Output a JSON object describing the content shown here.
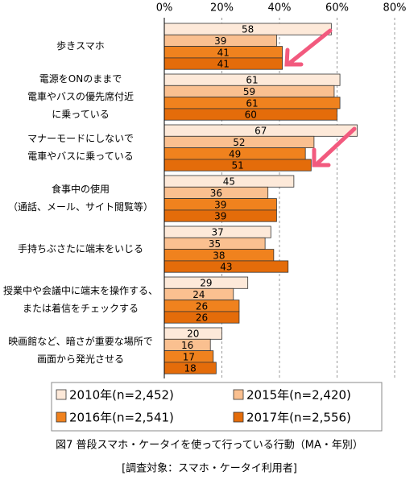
{
  "chart_data": {
    "type": "hbar",
    "title": "図7 普段スマホ・ケータイを使って行っている行動（MA・年別）",
    "subtitle": "[調査対象：スマホ・ケータイ利用者]",
    "categories": [
      [
        "歩きスマホ"
      ],
      [
        "電源をONのままで",
        "電車やバスの優先席付近",
        "に乗っている"
      ],
      [
        "マナーモードにしないで",
        "電車やバスに乗っている"
      ],
      [
        "食事中の使用",
        "（通話、メール、サイト閲覧等）"
      ],
      [
        "手持ちぶさたに端末をいじる"
      ],
      [
        "授業中や会議中に端末を操作する、",
        "または着信をチェックする"
      ],
      [
        "映画館など、暗さが重要な場所で",
        "画面から発光させる"
      ]
    ],
    "series": [
      {
        "name": "2010年(n=2,452)",
        "color": "#fde9d9",
        "values": [
          58,
          61,
          67,
          45,
          37,
          29,
          20
        ]
      },
      {
        "name": "2015年(n=2,420)",
        "color": "#fac090",
        "values": [
          39,
          59,
          52,
          36,
          35,
          24,
          16
        ]
      },
      {
        "name": "2016年(n=2,541)",
        "color": "#f0821e",
        "values": [
          41,
          61,
          49,
          39,
          38,
          26,
          17
        ]
      },
      {
        "name": "2017年(n=2,556)",
        "color": "#e46c0a",
        "values": [
          41,
          60,
          51,
          39,
          43,
          26,
          18
        ]
      }
    ],
    "xlim": [
      0,
      80
    ],
    "xticks": [
      {
        "value": 0,
        "label": "0%"
      },
      {
        "value": 20,
        "label": "20%"
      },
      {
        "value": 40,
        "label": "40%"
      },
      {
        "value": 60,
        "label": "60%"
      },
      {
        "value": 80,
        "label": "80%"
      }
    ],
    "grid": true
  }
}
